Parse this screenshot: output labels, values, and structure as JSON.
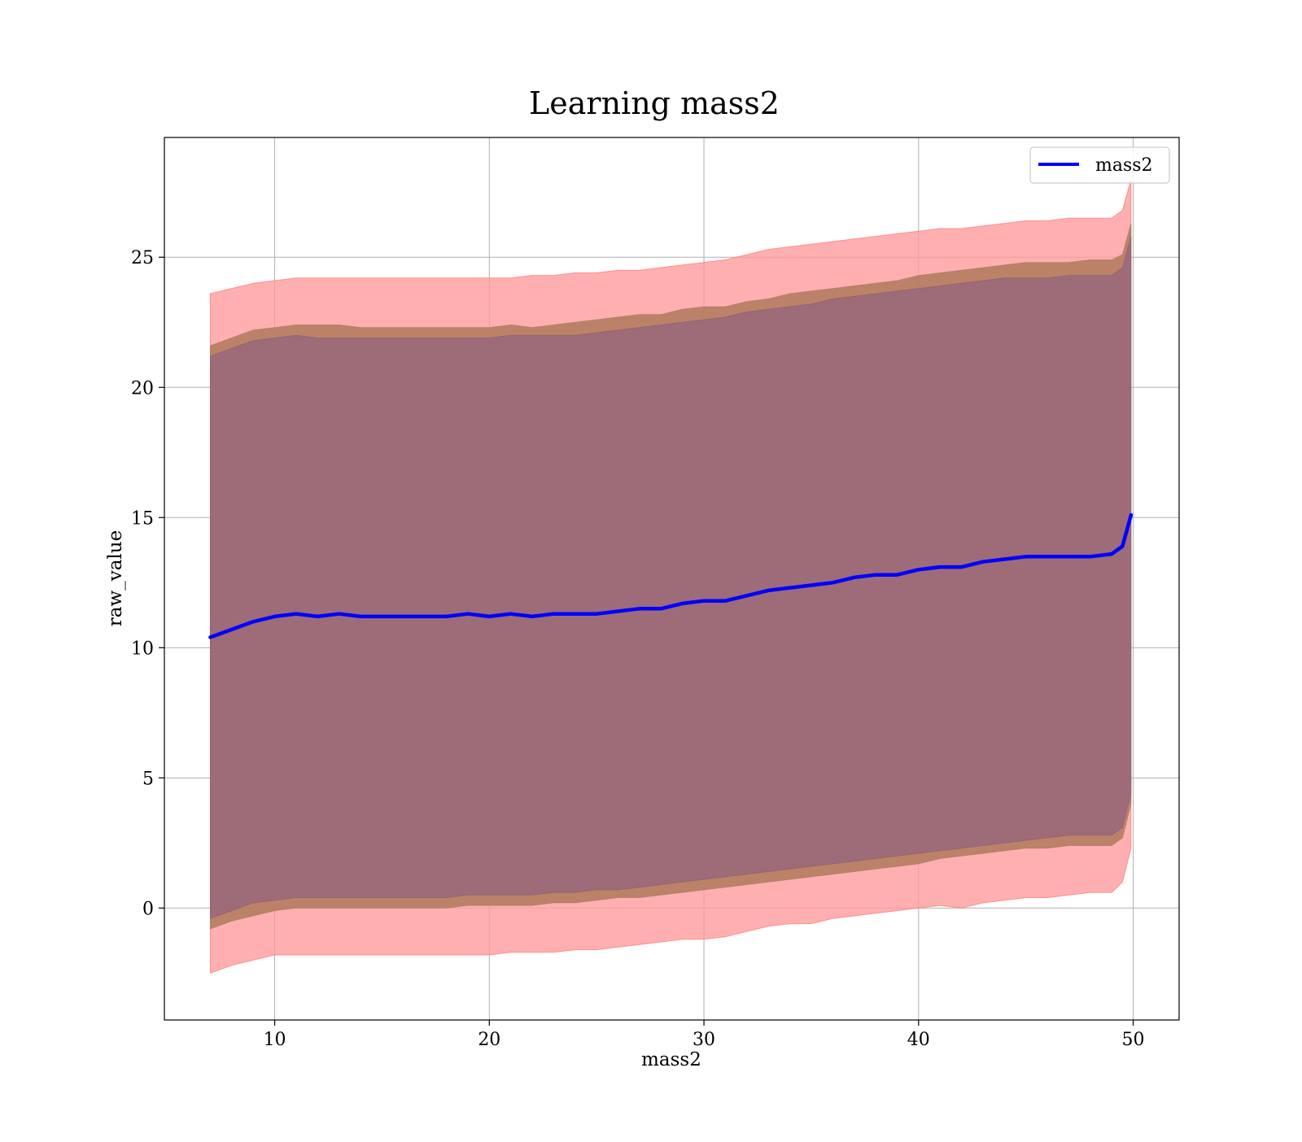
{
  "chart_data": {
    "type": "area",
    "title": "Learning mass2",
    "xlabel": "mass2",
    "ylabel": "raw_value",
    "xlim": [
      4.86,
      52.14
    ],
    "ylim": [
      -4.3,
      29.6
    ],
    "xticks": [
      10,
      20,
      30,
      40,
      50
    ],
    "yticks": [
      0,
      5,
      10,
      15,
      20,
      25
    ],
    "grid": true,
    "legend": {
      "position": "top-right",
      "entries": [
        "mass2"
      ]
    },
    "colors": {
      "line": "#0000ff",
      "band_outer": "#ff9999",
      "band_middle": "#b07a5c",
      "band_inner": "#9e6b78",
      "grid": "#b0b0b0"
    },
    "series": [
      {
        "name": "mass2",
        "x": [
          7,
          8,
          9,
          10,
          11,
          12,
          13,
          14,
          15,
          16,
          17,
          18,
          19,
          20,
          21,
          22,
          23,
          24,
          25,
          26,
          27,
          28,
          29,
          30,
          31,
          32,
          33,
          34,
          35,
          36,
          37,
          38,
          39,
          40,
          41,
          42,
          43,
          44,
          45,
          46,
          47,
          48,
          49,
          49.5,
          49.9
        ],
        "y": [
          10.4,
          10.7,
          11.0,
          11.2,
          11.3,
          11.2,
          11.3,
          11.2,
          11.2,
          11.2,
          11.2,
          11.2,
          11.3,
          11.2,
          11.3,
          11.2,
          11.3,
          11.3,
          11.3,
          11.4,
          11.5,
          11.5,
          11.7,
          11.8,
          11.8,
          12.0,
          12.2,
          12.3,
          12.4,
          12.5,
          12.7,
          12.8,
          12.8,
          13.0,
          13.1,
          13.1,
          13.3,
          13.4,
          13.5,
          13.5,
          13.5,
          13.5,
          13.6,
          13.9,
          15.1
        ],
        "band_outer": {
          "upper": [
            23.6,
            23.8,
            24.0,
            24.1,
            24.2,
            24.2,
            24.2,
            24.2,
            24.2,
            24.2,
            24.2,
            24.2,
            24.2,
            24.2,
            24.2,
            24.3,
            24.3,
            24.4,
            24.4,
            24.5,
            24.5,
            24.6,
            24.7,
            24.8,
            24.9,
            25.1,
            25.3,
            25.4,
            25.5,
            25.6,
            25.7,
            25.8,
            25.9,
            26.0,
            26.1,
            26.1,
            26.2,
            26.3,
            26.4,
            26.4,
            26.5,
            26.5,
            26.5,
            26.8,
            28.0
          ],
          "lower": [
            -2.5,
            -2.2,
            -2.0,
            -1.8,
            -1.8,
            -1.8,
            -1.8,
            -1.8,
            -1.8,
            -1.8,
            -1.8,
            -1.8,
            -1.8,
            -1.8,
            -1.7,
            -1.7,
            -1.7,
            -1.6,
            -1.6,
            -1.5,
            -1.4,
            -1.3,
            -1.2,
            -1.2,
            -1.1,
            -0.9,
            -0.7,
            -0.6,
            -0.6,
            -0.4,
            -0.3,
            -0.2,
            -0.1,
            0.0,
            0.1,
            0.0,
            0.2,
            0.3,
            0.4,
            0.4,
            0.5,
            0.6,
            0.6,
            1.0,
            2.3
          ]
        },
        "band_middle": {
          "upper": [
            21.6,
            21.9,
            22.2,
            22.3,
            22.4,
            22.4,
            22.4,
            22.3,
            22.3,
            22.3,
            22.3,
            22.3,
            22.3,
            22.3,
            22.4,
            22.3,
            22.4,
            22.5,
            22.6,
            22.7,
            22.8,
            22.8,
            23.0,
            23.1,
            23.1,
            23.3,
            23.4,
            23.6,
            23.7,
            23.8,
            23.9,
            24.0,
            24.1,
            24.3,
            24.4,
            24.5,
            24.6,
            24.7,
            24.8,
            24.8,
            24.8,
            24.9,
            24.9,
            25.1,
            26.3
          ],
          "lower": [
            -0.8,
            -0.5,
            -0.3,
            -0.1,
            0.0,
            0.0,
            0.0,
            0.0,
            0.0,
            0.0,
            0.0,
            0.0,
            0.1,
            0.1,
            0.1,
            0.1,
            0.2,
            0.2,
            0.3,
            0.4,
            0.4,
            0.5,
            0.6,
            0.7,
            0.8,
            0.9,
            1.0,
            1.1,
            1.2,
            1.3,
            1.4,
            1.5,
            1.6,
            1.7,
            1.9,
            2.0,
            2.1,
            2.2,
            2.3,
            2.3,
            2.4,
            2.4,
            2.4,
            2.7,
            4.0
          ]
        },
        "band_inner": {
          "upper": [
            21.2,
            21.5,
            21.8,
            21.9,
            22.0,
            21.9,
            21.9,
            21.9,
            21.9,
            21.9,
            21.9,
            21.9,
            21.9,
            21.9,
            22.0,
            22.0,
            22.0,
            22.0,
            22.1,
            22.2,
            22.3,
            22.4,
            22.5,
            22.6,
            22.7,
            22.9,
            23.0,
            23.1,
            23.2,
            23.4,
            23.5,
            23.6,
            23.7,
            23.8,
            23.9,
            24.0,
            24.1,
            24.2,
            24.2,
            24.2,
            24.3,
            24.3,
            24.3,
            24.6,
            25.8
          ],
          "lower": [
            -0.4,
            -0.1,
            0.2,
            0.3,
            0.4,
            0.4,
            0.4,
            0.4,
            0.4,
            0.4,
            0.4,
            0.4,
            0.5,
            0.5,
            0.5,
            0.5,
            0.6,
            0.6,
            0.7,
            0.7,
            0.8,
            0.9,
            1.0,
            1.1,
            1.2,
            1.3,
            1.4,
            1.5,
            1.6,
            1.7,
            1.8,
            1.9,
            2.0,
            2.1,
            2.2,
            2.3,
            2.4,
            2.5,
            2.6,
            2.7,
            2.8,
            2.8,
            2.8,
            3.1,
            4.4
          ]
        }
      }
    ]
  }
}
